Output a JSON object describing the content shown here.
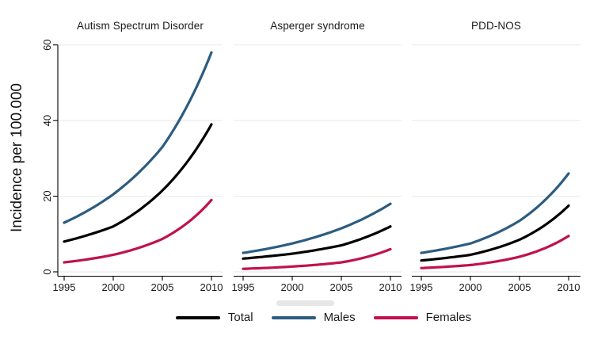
{
  "chart_data": {
    "type": "line",
    "title": "",
    "ylabel": "Incidence per 100.000",
    "xlabel": "",
    "x": [
      1995,
      2000,
      2005,
      2010
    ],
    "x_tick_labels": [
      "1995",
      "2000",
      "2005",
      "2010"
    ],
    "y_tick_labels": [
      "0",
      "20",
      "40",
      "60"
    ],
    "y_tick_values": [
      0,
      20,
      40,
      60
    ],
    "ylim": [
      0,
      60
    ],
    "xlim": [
      1995,
      2010
    ],
    "grid": "horizontal",
    "legend_position": "bottom-center",
    "panels": [
      {
        "title": "Autism Spectrum Disorder",
        "series": [
          {
            "name": "Total",
            "values": [
              8,
              12,
              21.5,
              39
            ]
          },
          {
            "name": "Males",
            "values": [
              13,
              20.5,
              33,
              58
            ]
          },
          {
            "name": "Females",
            "values": [
              2.5,
              4.5,
              8.7,
              19
            ]
          }
        ]
      },
      {
        "title": "Asperger syndrome",
        "series": [
          {
            "name": "Total",
            "values": [
              3.5,
              4.8,
              7,
              12
            ]
          },
          {
            "name": "Males",
            "values": [
              5,
              7.5,
              11.5,
              18
            ]
          },
          {
            "name": "Females",
            "values": [
              0.8,
              1.4,
              2.5,
              6
            ]
          }
        ]
      },
      {
        "title": "PDD-NOS",
        "series": [
          {
            "name": "Total",
            "values": [
              3,
              4.5,
              8.5,
              17.5
            ]
          },
          {
            "name": "Males",
            "values": [
              5,
              7.5,
              13.5,
              26
            ]
          },
          {
            "name": "Females",
            "values": [
              1,
              1.8,
              4,
              9.5
            ]
          }
        ]
      }
    ],
    "legend": [
      {
        "label": "Total",
        "color": "#000000"
      },
      {
        "label": "Males",
        "color": "#2c5c80"
      },
      {
        "label": "Females",
        "color": "#c01150"
      }
    ],
    "colors": {
      "Total": "#000000",
      "Males": "#2c5c80",
      "Females": "#c01150",
      "grid": "#ebebeb",
      "axis": "#000000",
      "text": "#1a1a1a"
    }
  }
}
